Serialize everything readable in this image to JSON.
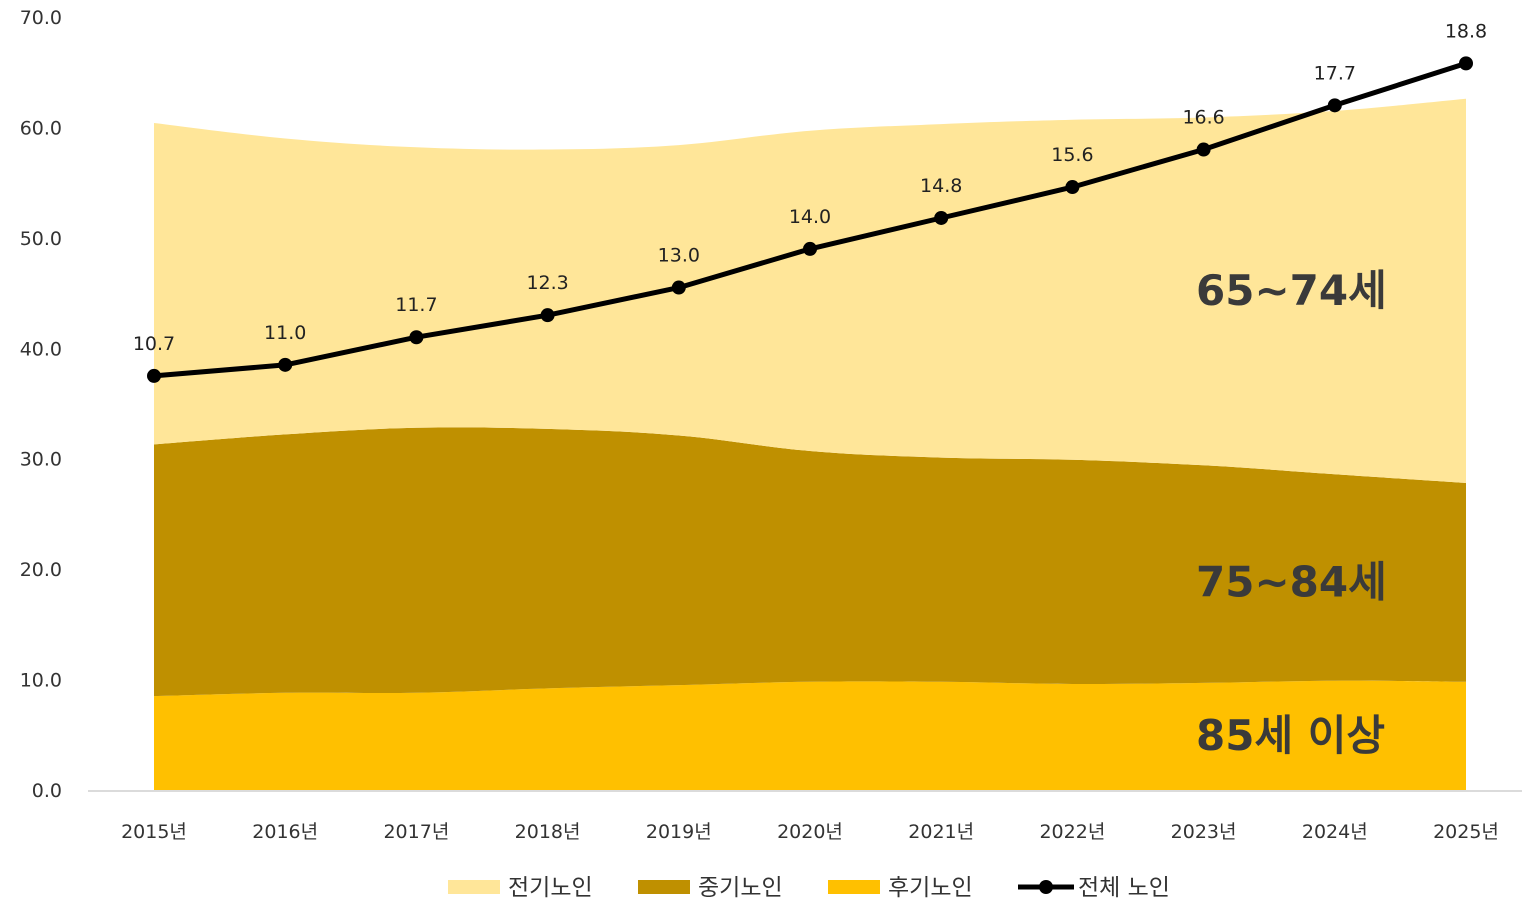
{
  "chart_data": {
    "type": "area",
    "categories": [
      "2015년",
      "2016년",
      "2017년",
      "2018년",
      "2019년",
      "2020년",
      "2021년",
      "2022년",
      "2023년",
      "2024년",
      "2025년"
    ],
    "ylim": [
      0,
      70
    ],
    "yticks": [
      "0.0",
      "10.0",
      "20.0",
      "30.0",
      "40.0",
      "50.0",
      "60.0",
      "70.0"
    ],
    "series": [
      {
        "name": "후기노인",
        "kind": "stacked-area",
        "color": "#FFC000",
        "values": [
          8.5,
          8.8,
          8.8,
          9.2,
          9.5,
          9.8,
          9.8,
          9.6,
          9.7,
          9.9,
          9.8
        ]
      },
      {
        "name": "중기노인",
        "kind": "stacked-area",
        "color": "#BF9000",
        "values": [
          22.8,
          23.4,
          24.0,
          23.5,
          22.6,
          20.9,
          20.3,
          20.3,
          19.7,
          18.7,
          18.0
        ]
      },
      {
        "name": "전기노인",
        "kind": "stacked-area",
        "color": "#FFE699",
        "values": [
          29.1,
          26.8,
          25.4,
          25.3,
          26.3,
          29.0,
          30.2,
          30.8,
          31.5,
          32.9,
          34.8
        ]
      },
      {
        "name": "전체 노인",
        "kind": "line",
        "color": "#000000",
        "values": [
          37.5,
          38.5,
          41.0,
          43.0,
          45.5,
          49.0,
          51.8,
          54.6,
          58.0,
          62.0,
          65.8
        ],
        "labels": [
          "10.7",
          "11.0",
          "11.7",
          "12.3",
          "13.0",
          "14.0",
          "14.8",
          "15.6",
          "16.6",
          "17.7",
          "18.8"
        ]
      }
    ],
    "band_labels": [
      {
        "text": "65~74세",
        "series": "전기노인"
      },
      {
        "text": "75~84세",
        "series": "중기노인"
      },
      {
        "text": "85세 이상",
        "series": "후기노인"
      }
    ],
    "legend_position": "bottom",
    "legend": [
      "전기노인",
      "중기노인",
      "후기노인",
      "전체 노인"
    ],
    "grid": false
  }
}
